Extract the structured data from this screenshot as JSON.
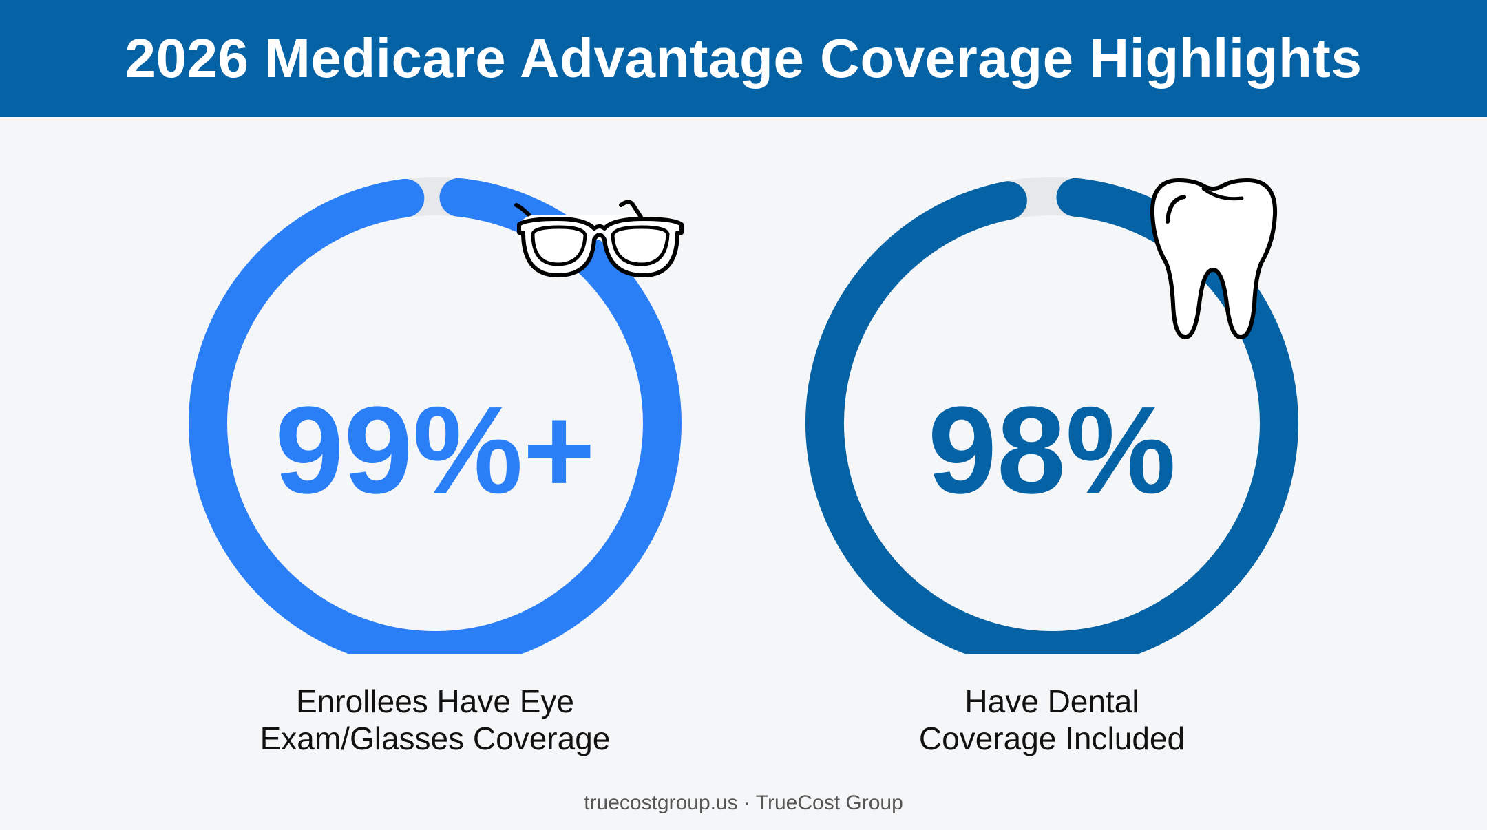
{
  "header": {
    "title": "2026 Medicare Advantage Coverage Highlights"
  },
  "chart_data": [
    {
      "type": "donut",
      "value_label": "99%+",
      "value": 99,
      "max": 100,
      "caption_line1": "Enrollees Have Eye",
      "caption_line2": "Exam/Glasses Coverage",
      "color": "#2a7ff7",
      "track_color": "#e6e8ea",
      "icon": "eyeglasses-icon"
    },
    {
      "type": "donut",
      "value_label": "98%",
      "value": 98,
      "max": 100,
      "caption_line1": "Have Dental",
      "caption_line2": "Coverage Included",
      "color": "#0563a5",
      "track_color": "#e6e8ea",
      "icon": "tooth-icon"
    }
  ],
  "footer": {
    "text": "truecostgroup.us · TrueCost Group"
  }
}
